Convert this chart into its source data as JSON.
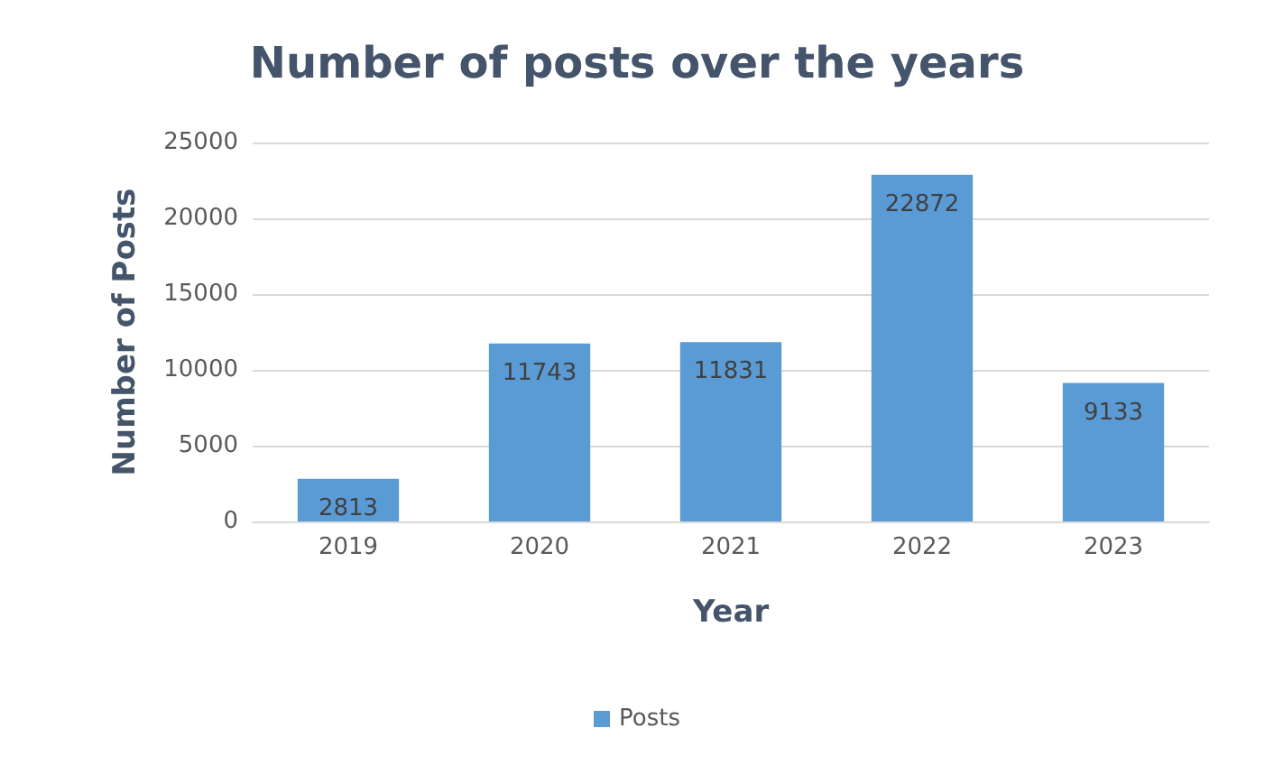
{
  "chart_data": {
    "type": "bar",
    "title": "Number of posts over the years",
    "xlabel": "Year",
    "ylabel": "Number of Posts",
    "categories": [
      "2019",
      "2020",
      "2021",
      "2022",
      "2023"
    ],
    "series": [
      {
        "name": "Posts",
        "color": "#5b9bd5",
        "values": [
          2813,
          11743,
          11831,
          22872,
          9133
        ]
      }
    ],
    "ylim": [
      0,
      25000
    ],
    "yticks": [
      0,
      5000,
      10000,
      15000,
      20000,
      25000
    ],
    "grid": "y",
    "legend": "bottom",
    "data_labels": true
  }
}
